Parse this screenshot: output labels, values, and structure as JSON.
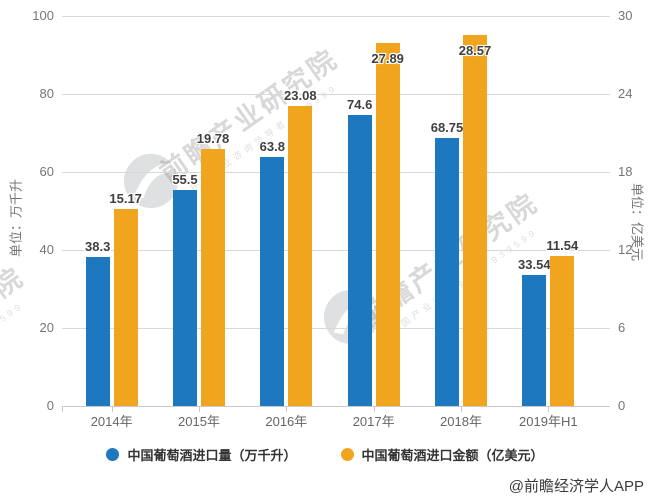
{
  "chart_data": {
    "type": "bar",
    "categories": [
      "2014年",
      "2015年",
      "2016年",
      "2017年",
      "2018年",
      "2019年H1"
    ],
    "series": [
      {
        "name": "中国葡萄酒进口量（万千升）",
        "axis": "left",
        "color": "#1e78c0",
        "values": [
          38.3,
          55.5,
          63.8,
          74.6,
          68.75,
          33.54
        ]
      },
      {
        "name": "中国葡萄酒进口金额（亿美元）",
        "axis": "right",
        "color": "#f1a51e",
        "values": [
          15.17,
          19.78,
          23.08,
          27.89,
          28.57,
          11.54
        ]
      }
    ],
    "left_axis": {
      "name": "单位：万千升",
      "ticks": [
        100,
        80,
        60,
        40,
        20,
        0
      ],
      "max": 100
    },
    "right_axis": {
      "name": "单位：亿美元",
      "ticks": [
        30,
        24,
        18,
        12,
        6,
        0
      ],
      "max": 30
    },
    "grid": true,
    "legend_position": "bottom"
  },
  "watermark": {
    "main": "前瞻产业研究院",
    "sub": "中国产业咨询领导者 939599"
  },
  "attribution": "@前瞻经济学人APP"
}
